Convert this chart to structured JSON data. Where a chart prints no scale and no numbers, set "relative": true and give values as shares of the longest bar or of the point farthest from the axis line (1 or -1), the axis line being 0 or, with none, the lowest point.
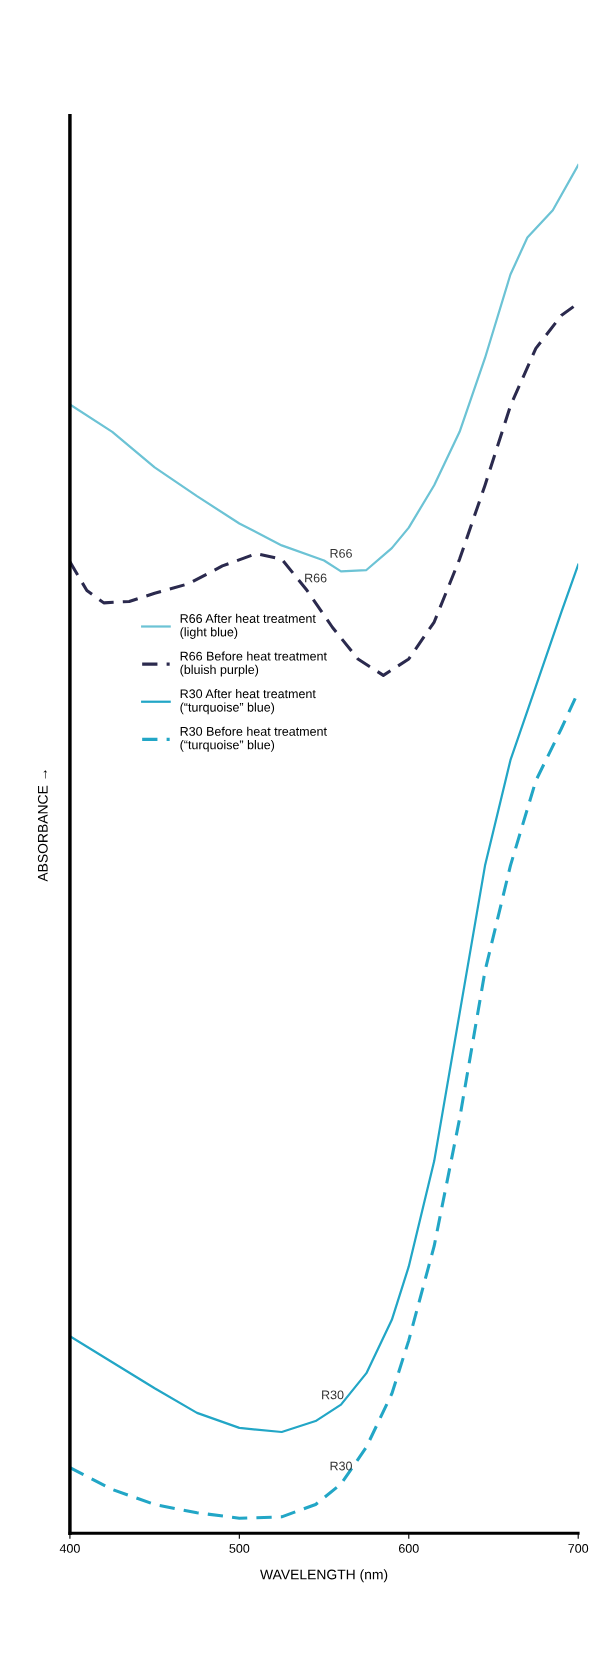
{
  "chart_data": {
    "type": "line",
    "relative": true,
    "xlabel": "WAVELENGTH (nm)",
    "ylabel": "ABSORBANCE →",
    "xlim": [
      400,
      700
    ],
    "xticks": [
      400,
      500,
      600,
      700
    ],
    "grid": false,
    "legend": "center left",
    "marker": "none",
    "series": [
      {
        "name": "R66 After heat treatment\n(light blue)",
        "color": "#6cc3d5",
        "line_style": "solid",
        "x": [
          400,
          425,
          450,
          475,
          500,
          525,
          550,
          560,
          575,
          590,
          600,
          615,
          630,
          645,
          660,
          670,
          685,
          700
        ],
        "values": [
          0.825,
          0.805,
          0.779,
          0.758,
          0.738,
          0.722,
          0.711,
          0.703,
          0.704,
          0.72,
          0.735,
          0.766,
          0.805,
          0.859,
          0.92,
          0.947,
          0.967,
          1.0
        ]
      },
      {
        "name": "R66 Before heat treatment\n(bluish purple)",
        "color": "#2b2a4e",
        "line_style": "dashed",
        "x": [
          400,
          410,
          420,
          435,
          450,
          470,
          490,
          510,
          525,
          540,
          555,
          570,
          585,
          600,
          615,
          630,
          645,
          660,
          675,
          690,
          700
        ],
        "values": [
          0.71,
          0.689,
          0.68,
          0.681,
          0.687,
          0.694,
          0.707,
          0.716,
          0.712,
          0.689,
          0.662,
          0.639,
          0.627,
          0.639,
          0.666,
          0.712,
          0.766,
          0.824,
          0.866,
          0.89,
          0.899
        ]
      },
      {
        "name": "R30 After heat treatment\n(“turquoise” blue)",
        "color": "#22a6c6",
        "line_style": "solid",
        "x": [
          400,
          425,
          450,
          475,
          500,
          525,
          545,
          560,
          575,
          590,
          600,
          615,
          630,
          645,
          660,
          675,
          690,
          700
        ],
        "values": [
          0.144,
          0.125,
          0.106,
          0.088,
          0.077,
          0.074,
          0.082,
          0.094,
          0.117,
          0.156,
          0.195,
          0.272,
          0.38,
          0.488,
          0.565,
          0.619,
          0.673,
          0.708
        ]
      },
      {
        "name": "R30 Before heat treatment\n(“turquoise” blue)",
        "color": "#22a6c6",
        "line_style": "dashed",
        "x": [
          400,
          425,
          450,
          475,
          500,
          525,
          545,
          560,
          575,
          590,
          600,
          615,
          630,
          645,
          660,
          675,
          690,
          700
        ],
        "values": [
          0.048,
          0.032,
          0.021,
          0.015,
          0.011,
          0.012,
          0.021,
          0.036,
          0.063,
          0.102,
          0.141,
          0.21,
          0.303,
          0.411,
          0.488,
          0.55,
          0.588,
          0.615
        ]
      }
    ],
    "annotations": [
      {
        "text": "R66",
        "x": 560,
        "y": 0.703
      },
      {
        "text": "R66",
        "x": 545,
        "y": 0.685
      },
      {
        "text": "R30",
        "x": 555,
        "y": 0.088
      },
      {
        "text": "R30",
        "x": 560,
        "y": 0.036
      }
    ]
  }
}
